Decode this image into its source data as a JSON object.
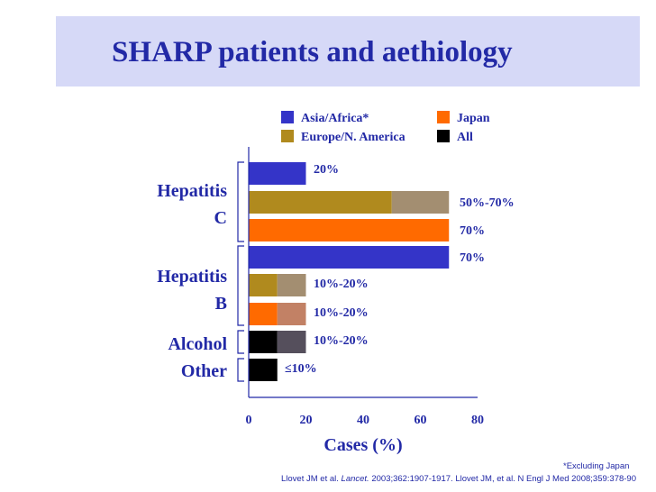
{
  "title": "SHARP patients and aethiology",
  "footnote": "*Excluding Japan",
  "reference": {
    "part1": "Llovet JM et al. ",
    "journal": "Lancet.",
    "part2": " 2003;362:1907-1917. Llovet JM, et al. N Engl J Med 2008;359:378-90"
  },
  "colors": {
    "asia_africa": "#3434c8",
    "europe_na": "#b08a1e",
    "japan": "#ff6a00",
    "all": "#000000",
    "text": "#2229a6"
  },
  "chart_data": {
    "type": "bar",
    "orientation": "horizontal",
    "xlabel": "Cases (%)",
    "xlim": [
      0,
      80
    ],
    "xticks": [
      "0",
      "20",
      "40",
      "60",
      "80"
    ],
    "legend": [
      {
        "name": "Asia/Africa*",
        "color_key": "asia_africa"
      },
      {
        "name": "Japan",
        "color_key": "japan"
      },
      {
        "name": "Europe/N. America",
        "color_key": "europe_na"
      },
      {
        "name": "All",
        "color_key": "all"
      }
    ],
    "groups": [
      {
        "label_line1": "Hepatitis",
        "label_line2": "C"
      },
      {
        "label_line1": "Hepatitis",
        "label_line2": "B"
      },
      {
        "label_line1": "Alcohol",
        "label_line2": ""
      },
      {
        "label_line1": "Other",
        "label_line2": ""
      }
    ],
    "bars": [
      {
        "group": 0,
        "series": "asia_africa",
        "min": 20,
        "max": 20,
        "label": "20%"
      },
      {
        "group": 0,
        "series": "europe_na",
        "min": 50,
        "max": 70,
        "label": "50%-70%"
      },
      {
        "group": 0,
        "series": "japan",
        "min": 70,
        "max": 70,
        "label": "70%"
      },
      {
        "group": 1,
        "series": "asia_africa",
        "min": 70,
        "max": 70,
        "label": "70%"
      },
      {
        "group": 1,
        "series": "europe_na",
        "min": 10,
        "max": 20,
        "label": "10%-20%"
      },
      {
        "group": 1,
        "series": "japan",
        "min": 10,
        "max": 20,
        "label": "10%-20%"
      },
      {
        "group": 2,
        "series": "all",
        "min": 10,
        "max": 20,
        "label": "10%-20%"
      },
      {
        "group": 3,
        "series": "all",
        "min": 10,
        "max": 10,
        "label": "≤10%"
      }
    ]
  }
}
